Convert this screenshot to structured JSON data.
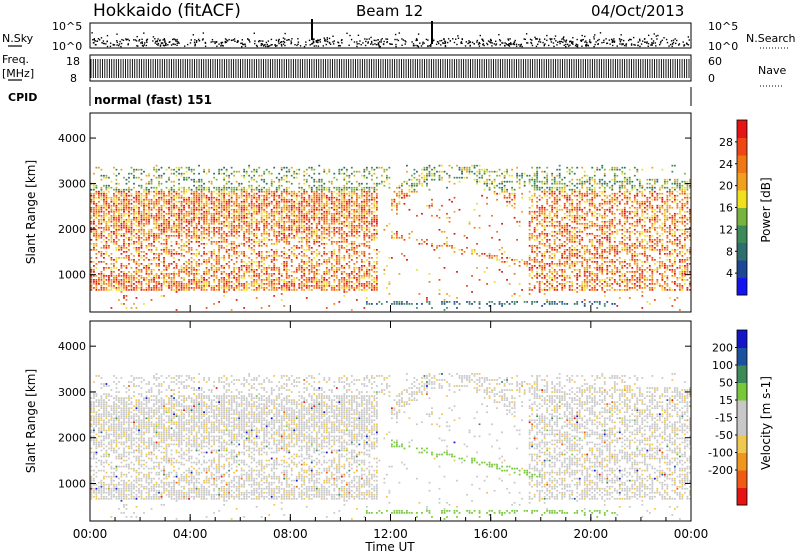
{
  "header": {
    "station": "Hokkaido (fitACF)",
    "beam": "Beam 12",
    "date": "04/Oct/2013"
  },
  "noise_panel": {
    "left_label": "N.Sky",
    "right_label": "N.Search",
    "left_ticks": [
      "10^5",
      "10^0"
    ],
    "right_ticks": [
      "10^5",
      "10^0"
    ]
  },
  "freq_panel": {
    "left_label_1": "Freq.",
    "left_label_2": "[MHz]",
    "left_ticks": [
      "18",
      "8"
    ],
    "right_ticks": [
      "60",
      "0"
    ],
    "right_label": "Nave"
  },
  "cpid": {
    "label": "CPID",
    "value": "normal (fast) 151"
  },
  "colors": {
    "power_scale": [
      "#1414f0",
      "#1e4696",
      "#2e6e6e",
      "#3c8a5a",
      "#78b43c",
      "#f0e01e",
      "#f0a01e",
      "#f07814",
      "#f04614",
      "#e61414"
    ],
    "velocity_scale": [
      "#e61414",
      "#f05a14",
      "#f0961e",
      "#f0c850",
      "#c8c8c8",
      "#c8c8c8",
      "#78c83c",
      "#3c8a5a",
      "#1e50a0",
      "#1414c8"
    ]
  },
  "chart_data": [
    {
      "type": "heatmap",
      "name": "power",
      "xlabel": "",
      "ylabel": "Slant Range [km]",
      "xlim": [
        0,
        24
      ],
      "ylim": [
        180,
        4550
      ],
      "yticks": [
        "4000",
        "3000",
        "2000",
        "1000"
      ],
      "yticks_values": [
        4000,
        3000,
        2000,
        1000
      ],
      "colorbar": {
        "label": "Power [dB]",
        "ticks": [
          "28",
          "24",
          "20",
          "16",
          "12",
          "8",
          "4"
        ],
        "tick_values": [
          28,
          24,
          20,
          16,
          12,
          8,
          4
        ],
        "range": [
          0,
          32
        ]
      }
    },
    {
      "type": "heatmap",
      "name": "velocity",
      "xlabel": "Time UT",
      "ylabel": "Slant Range [km]",
      "xlim": [
        0,
        24
      ],
      "ylim": [
        180,
        4550
      ],
      "xticks": [
        "00:00",
        "04:00",
        "08:00",
        "12:00",
        "16:00",
        "20:00",
        "00:00"
      ],
      "xticks_values": [
        0,
        4,
        8,
        12,
        16,
        20,
        24
      ],
      "yticks": [
        "4000",
        "3000",
        "2000",
        "1000"
      ],
      "yticks_values": [
        4000,
        3000,
        2000,
        1000
      ],
      "colorbar": {
        "label": "Velocity [m s-1]",
        "ticks": [
          "200",
          "100",
          "50",
          "15",
          "-15",
          "-50",
          "-100",
          "-200"
        ],
        "tick_values": [
          200,
          100,
          50,
          15,
          -15,
          -50,
          -100,
          -200
        ]
      }
    }
  ]
}
